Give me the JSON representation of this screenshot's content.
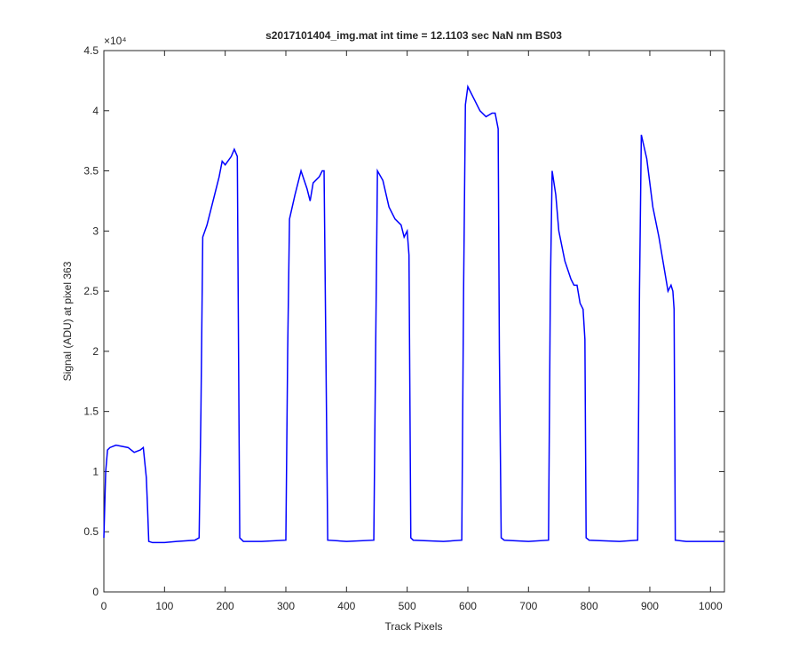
{
  "chart_data": {
    "type": "line",
    "title": "s2017101404_img.mat int time = 12.1103 sec  NaN nm BS03",
    "x_label": "Track Pixels",
    "y_label": "Signal (ADU) at pixel 363",
    "y_exponent_label": "×10⁴",
    "xlim": [
      0,
      1023
    ],
    "ylim": [
      0,
      4.5
    ],
    "xticks": [
      0,
      100,
      200,
      300,
      400,
      500,
      600,
      700,
      800,
      900,
      1000
    ],
    "yticks": [
      0,
      0.5,
      1,
      1.5,
      2,
      2.5,
      3,
      3.5,
      4,
      4.5
    ],
    "series": [
      {
        "name": "signal",
        "color": "#0000ff",
        "x": [
          0,
          3,
          6,
          10,
          20,
          30,
          40,
          50,
          60,
          65,
          68,
          70,
          72,
          74,
          80,
          100,
          120,
          150,
          157,
          160,
          163,
          170,
          180,
          190,
          195,
          200,
          210,
          215,
          220,
          222,
          224,
          230,
          260,
          300,
          303,
          306,
          315,
          325,
          335,
          340,
          345,
          355,
          360,
          363,
          366,
          369,
          400,
          445,
          448,
          451,
          460,
          470,
          480,
          490,
          495,
          500,
          503,
          506,
          510,
          560,
          590,
          593,
          596,
          600,
          610,
          620,
          630,
          640,
          645,
          650,
          652,
          655,
          660,
          700,
          733,
          736,
          739,
          745,
          750,
          760,
          770,
          775,
          780,
          785,
          790,
          793,
          795,
          800,
          850,
          880,
          883,
          886,
          895,
          905,
          915,
          925,
          930,
          935,
          938,
          940,
          942,
          960,
          1000,
          1023
        ],
        "values": [
          0.45,
          1.0,
          1.18,
          1.2,
          1.22,
          1.21,
          1.2,
          1.16,
          1.18,
          1.2,
          1.05,
          0.95,
          0.7,
          0.42,
          0.41,
          0.41,
          0.42,
          0.43,
          0.45,
          1.5,
          2.95,
          3.05,
          3.25,
          3.45,
          3.58,
          3.55,
          3.62,
          3.68,
          3.62,
          2.0,
          0.45,
          0.42,
          0.42,
          0.43,
          2.0,
          3.1,
          3.3,
          3.5,
          3.35,
          3.25,
          3.4,
          3.45,
          3.5,
          3.5,
          2.0,
          0.43,
          0.42,
          0.43,
          2.0,
          3.5,
          3.42,
          3.2,
          3.1,
          3.05,
          2.95,
          3.0,
          2.8,
          0.45,
          0.43,
          0.42,
          0.43,
          2.5,
          4.05,
          4.2,
          4.1,
          4.0,
          3.95,
          3.98,
          3.98,
          3.85,
          2.0,
          0.45,
          0.43,
          0.42,
          0.43,
          2.5,
          3.5,
          3.3,
          3.0,
          2.75,
          2.6,
          2.55,
          2.55,
          2.4,
          2.35,
          2.1,
          0.45,
          0.43,
          0.42,
          0.43,
          2.5,
          3.8,
          3.6,
          3.2,
          2.95,
          2.65,
          2.5,
          2.55,
          2.5,
          2.35,
          0.43,
          0.42,
          0.42,
          0.42
        ]
      }
    ]
  }
}
